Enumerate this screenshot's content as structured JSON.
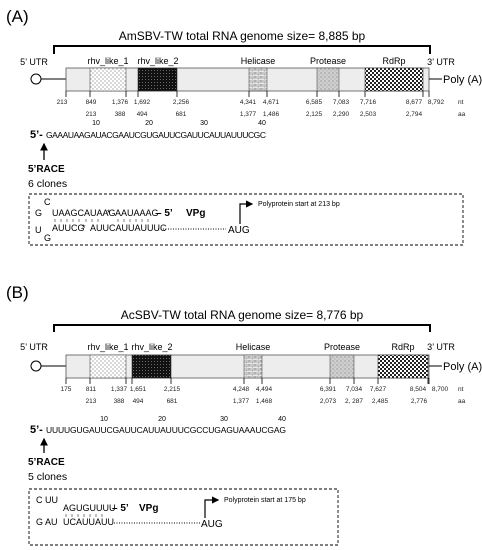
{
  "panels": [
    {
      "id": "A",
      "label": "(A)",
      "title": "AmSBV-TW total RNA genome size= 8,885 bp",
      "utr5": "5’ UTR",
      "utr3": "3’ UTR",
      "polyA": "Poly (A)",
      "domains": [
        "rhv_like_1",
        "rhv_like_2",
        "Helicase",
        "Protease",
        "RdRp"
      ],
      "nt_positions": [
        "213",
        "849",
        "1,376",
        "1,692",
        "2,256",
        "4,341",
        "4,671",
        "6,585",
        "7,083",
        "7,716",
        "8,677",
        "8,792"
      ],
      "aa_positions": [
        "213",
        "388",
        "494",
        "681",
        "1,377",
        "1,486",
        "2,125",
        "2,290",
        "2,503",
        "2,794"
      ],
      "nt_unit": "nt",
      "aa_unit": "aa",
      "ruler_numbers": [
        "10",
        "20",
        "30",
        "40"
      ],
      "seq_prefix": "5’-",
      "sequence": "GAAAUAAGAUACGAAUCGUGAUUCGAUUCAUUAUUUCGC",
      "race_label": "5’RACE",
      "clones": "6 clones",
      "vpg": {
        "loop_top": "C",
        "loop_left_top": "G",
        "loop_left_bottom": "U",
        "loop_bottom": "G",
        "stem_top": "UAAGCAUAAG",
        "stem_top2": "AAUAAAG",
        "five_prime": "– 5’",
        "vpg_label": "VPg",
        "stem_bottom": "AUUCG",
        "stem_bottom2": "AUUCAUUAUUUC",
        "aug": "AUG",
        "polyprotein_note": "Polyprotein start at 213 bp"
      }
    },
    {
      "id": "B",
      "label": "(B)",
      "title": "AcSBV-TW total RNA genome size= 8,776 bp",
      "utr5": "5’ UTR",
      "utr3": "3’ UTR",
      "polyA": "Poly (A)",
      "domains": [
        "rhv_like_1",
        "rhv_like_2",
        "Helicase",
        "Protease",
        "RdRp"
      ],
      "nt_positions": [
        "175",
        "811",
        "1,337",
        "1,651",
        "2,215",
        "4,248",
        "4,494",
        "6,391",
        "7,034",
        "7,627",
        "8,504",
        "8,700"
      ],
      "aa_positions": [
        "213",
        "388",
        "494",
        "681",
        "1,377",
        "1,468",
        "2,073",
        "2, 287",
        "2,485",
        "2,776"
      ],
      "nt_unit": "nt",
      "aa_unit": "aa",
      "ruler_numbers": [
        "10",
        "20",
        "30",
        "40"
      ],
      "seq_prefix": "5’-",
      "sequence": "UUUUGUGAUUCGAUUCAUUAUUUCGCCUGAGUAAAUCGAG",
      "race_label": "5’RACE",
      "clones": "5 clones",
      "vpg": {
        "loop_top": "C UU",
        "loop_bottom": "G AU",
        "stem_top": "AGUGUUUU",
        "five_prime": "– 5’",
        "vpg_label": "VPg",
        "stem_bottom": "UCAUUAUU",
        "aug": "AUG",
        "polyprotein_note": "Polyprotein start at 175 bp"
      }
    }
  ]
}
